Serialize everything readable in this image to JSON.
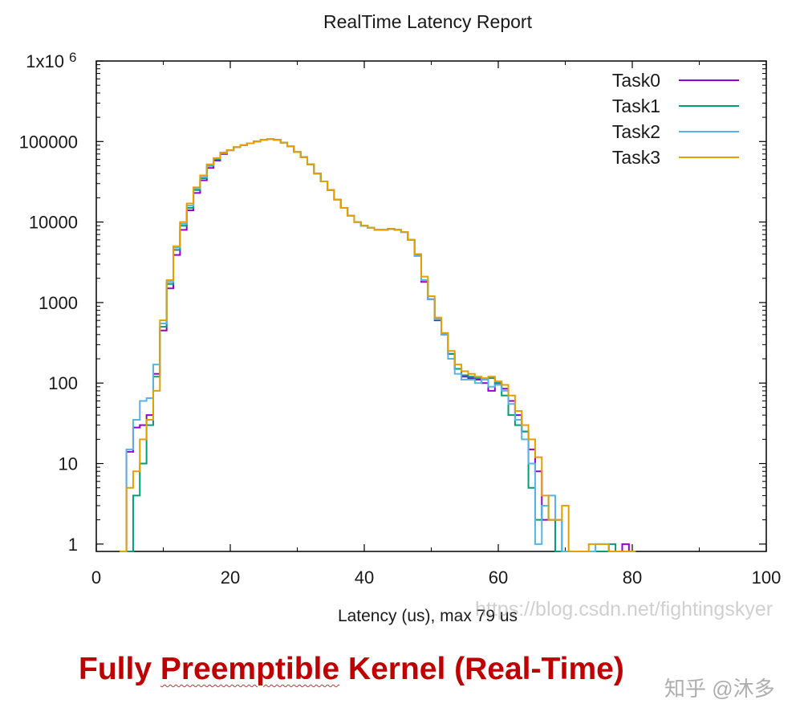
{
  "chart_data": {
    "type": "line",
    "style": "histogram-steps",
    "title": "RealTime Latency Report",
    "xlabel": "Latency (us), max 79 us",
    "ylabel": "",
    "xlim": [
      0,
      100
    ],
    "ylim": [
      0.81,
      1000000
    ],
    "yscale": "log",
    "grid": false,
    "legend_position": "top-right",
    "x_ticks": [
      "0",
      "20",
      "40",
      "60",
      "80",
      "100"
    ],
    "y_ticks": [
      {
        "value": 1,
        "label": "1"
      },
      {
        "value": 10,
        "label": "10"
      },
      {
        "value": 100,
        "label": "100"
      },
      {
        "value": 1000,
        "label": "1000"
      },
      {
        "value": 10000,
        "label": "10000"
      },
      {
        "value": 100000,
        "label": "100000"
      },
      {
        "value": 1000000,
        "label": "1x10",
        "sup": "6"
      }
    ],
    "x": [
      4,
      5,
      6,
      7,
      8,
      9,
      10,
      11,
      12,
      13,
      14,
      15,
      16,
      17,
      18,
      19,
      20,
      21,
      22,
      23,
      24,
      25,
      26,
      27,
      28,
      29,
      30,
      31,
      32,
      33,
      34,
      35,
      36,
      37,
      38,
      39,
      40,
      41,
      42,
      43,
      44,
      45,
      46,
      47,
      48,
      49,
      50,
      51,
      52,
      53,
      54,
      55,
      56,
      57,
      58,
      59,
      60,
      61,
      62,
      63,
      64,
      65,
      66,
      67,
      68,
      69,
      70,
      71,
      72,
      73,
      74,
      75,
      76,
      77,
      78,
      79,
      80
    ],
    "series": [
      {
        "name": "Task0",
        "color": "#9400d3",
        "values": [
          0,
          14,
          28,
          30,
          40,
          130,
          450,
          1500,
          3900,
          8000,
          14000,
          23000,
          33000,
          47000,
          58000,
          70000,
          78000,
          85000,
          90000,
          95000,
          100000,
          105000,
          107000,
          105000,
          97000,
          87000,
          74000,
          64000,
          52000,
          40000,
          32000,
          25000,
          19000,
          15000,
          12000,
          10000,
          9000,
          8500,
          8000,
          8000,
          8200,
          8000,
          7500,
          6000,
          3800,
          1800,
          1100,
          600,
          400,
          230,
          150,
          120,
          115,
          110,
          100,
          80,
          100,
          85,
          60,
          40,
          25,
          15,
          8,
          2,
          2,
          2,
          0,
          0,
          0,
          0,
          0,
          0,
          0,
          0,
          0,
          1,
          0
        ]
      },
      {
        "name": "Task1",
        "color": "#009e73",
        "values": [
          0,
          0,
          4,
          10,
          30,
          120,
          500,
          1700,
          4500,
          9000,
          15000,
          25000,
          35000,
          50000,
          60000,
          71000,
          78000,
          85000,
          90000,
          95000,
          100000,
          105000,
          107000,
          105000,
          97000,
          87000,
          74000,
          64000,
          52000,
          40000,
          32000,
          25000,
          19000,
          15000,
          12000,
          10000,
          9000,
          8500,
          8000,
          8000,
          8200,
          8000,
          7500,
          6000,
          3900,
          1900,
          1100,
          620,
          410,
          230,
          150,
          125,
          120,
          115,
          110,
          115,
          100,
          70,
          40,
          30,
          25,
          5,
          2,
          3,
          2,
          0,
          0,
          0,
          0,
          0,
          0,
          0,
          0,
          1,
          0,
          0,
          0
        ]
      },
      {
        "name": "Task2",
        "color": "#56b4e9",
        "values": [
          0,
          15,
          35,
          60,
          65,
          170,
          550,
          1800,
          4800,
          9500,
          16000,
          26000,
          36000,
          51000,
          62000,
          73000,
          78000,
          85000,
          90000,
          95000,
          100000,
          105000,
          107000,
          105000,
          97000,
          87000,
          74000,
          64000,
          52000,
          40000,
          32000,
          25000,
          19000,
          15000,
          12000,
          10000,
          9000,
          8500,
          8000,
          8000,
          8200,
          8000,
          7500,
          6000,
          3800,
          1900,
          1100,
          620,
          400,
          200,
          130,
          110,
          110,
          100,
          110,
          90,
          95,
          80,
          55,
          35,
          20,
          10,
          1,
          3,
          4,
          2,
          0,
          0,
          0,
          0,
          0,
          1,
          1,
          0,
          0,
          0,
          0
        ]
      },
      {
        "name": "Task3",
        "color": "#e69f00",
        "values": [
          0,
          5,
          8,
          20,
          35,
          80,
          600,
          1900,
          5000,
          10000,
          17000,
          27000,
          38000,
          52000,
          62000,
          72000,
          78000,
          85000,
          90000,
          95000,
          100000,
          105000,
          107000,
          105000,
          97000,
          87000,
          74000,
          64000,
          52000,
          40000,
          32000,
          25000,
          19000,
          15000,
          12000,
          10000,
          9000,
          8500,
          8000,
          8000,
          8200,
          8000,
          7500,
          6000,
          4000,
          2100,
          1200,
          650,
          420,
          250,
          170,
          140,
          130,
          120,
          115,
          120,
          105,
          95,
          70,
          45,
          30,
          20,
          12,
          4,
          2,
          2,
          3,
          0,
          0,
          0,
          1,
          1,
          1,
          0,
          0,
          0,
          0
        ]
      }
    ]
  },
  "caption": {
    "pre": "Fully ",
    "underlined": "Preemptible",
    "post": " Kernel (Real-Time)"
  },
  "watermarks": {
    "url": "https://blog.csdn.net/fightingskyer",
    "zhihu": "知乎 @沐多"
  }
}
